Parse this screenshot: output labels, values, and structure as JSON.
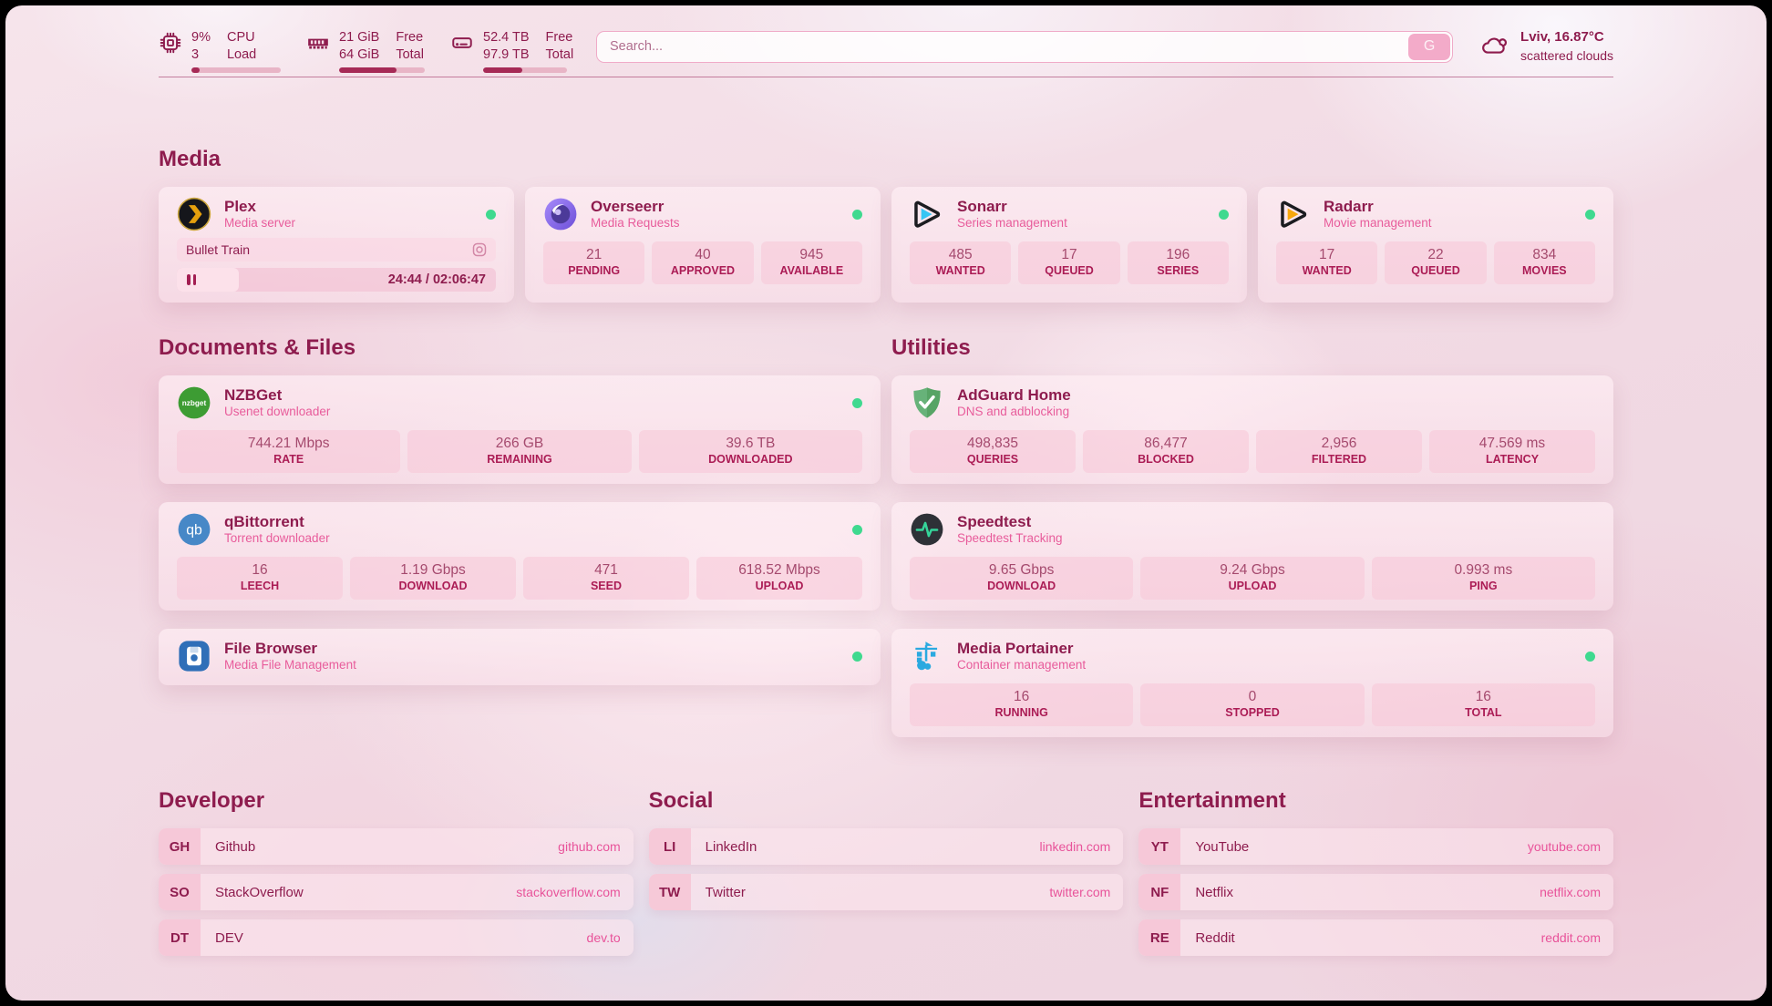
{
  "colors": {
    "accent": "#8e1c4e",
    "subtitle_pink": "#e85c9b",
    "url_pink": "#e8539a",
    "status_online": "#3fd98f",
    "bar_fill": "#a62a56"
  },
  "header": {
    "cpu": {
      "icon": "cpu-icon",
      "value": "9%",
      "sub": "3",
      "label_top": "CPU",
      "label_bottom": "Load",
      "percent": 9
    },
    "memory": {
      "icon": "memory-icon",
      "value": "21 GiB",
      "sub": "64 GiB",
      "label_top": "Free",
      "label_bottom": "Total",
      "percent": 67
    },
    "disk": {
      "icon": "disk-icon",
      "value": "52.4 TB",
      "sub": "97.9 TB",
      "label_top": "Free",
      "label_bottom": "Total",
      "percent": 47
    },
    "search": {
      "placeholder": "Search...",
      "button_label": "G"
    },
    "weather": {
      "icon": "cloud-icon",
      "location": "Lviv, 16.87°C",
      "condition": "scattered clouds"
    }
  },
  "media": {
    "title": "Media",
    "services": [
      {
        "icon": "plex-icon",
        "name": "Plex",
        "desc": "Media server",
        "online": true,
        "player": {
          "title": "Bullet Train",
          "time": "24:44 / 02:06:47",
          "progress_percent": 19.5
        }
      },
      {
        "icon": "overseerr-icon",
        "name": "Overseerr",
        "desc": "Media Requests",
        "online": true,
        "stats": [
          {
            "value": "21",
            "label": "PENDING"
          },
          {
            "value": "40",
            "label": "APPROVED"
          },
          {
            "value": "945",
            "label": "AVAILABLE"
          }
        ]
      },
      {
        "icon": "sonarr-icon",
        "name": "Sonarr",
        "desc": "Series management",
        "online": true,
        "stats": [
          {
            "value": "485",
            "label": "WANTED"
          },
          {
            "value": "17",
            "label": "QUEUED"
          },
          {
            "value": "196",
            "label": "SERIES"
          }
        ]
      },
      {
        "icon": "radarr-icon",
        "name": "Radarr",
        "desc": "Movie management",
        "online": true,
        "stats": [
          {
            "value": "17",
            "label": "WANTED"
          },
          {
            "value": "22",
            "label": "QUEUED"
          },
          {
            "value": "834",
            "label": "MOVIES"
          }
        ]
      }
    ]
  },
  "documents": {
    "title": "Documents & Files",
    "services": [
      {
        "icon": "nzbget-icon",
        "name": "NZBGet",
        "desc": "Usenet downloader",
        "online": true,
        "stats": [
          {
            "value": "744.21 Mbps",
            "label": "RATE"
          },
          {
            "value": "266 GB",
            "label": "REMAINING"
          },
          {
            "value": "39.6 TB",
            "label": "DOWNLOADED"
          }
        ]
      },
      {
        "icon": "qbittorrent-icon",
        "name": "qBittorrent",
        "desc": "Torrent downloader",
        "online": true,
        "stats": [
          {
            "value": "16",
            "label": "LEECH"
          },
          {
            "value": "1.19 Gbps",
            "label": "DOWNLOAD"
          },
          {
            "value": "471",
            "label": "SEED"
          },
          {
            "value": "618.52 Mbps",
            "label": "UPLOAD"
          }
        ]
      },
      {
        "icon": "filebrowser-icon",
        "name": "File Browser",
        "desc": "Media File Management",
        "online": true,
        "stats": []
      }
    ]
  },
  "utilities": {
    "title": "Utilities",
    "services": [
      {
        "icon": "adguard-icon",
        "name": "AdGuard Home",
        "desc": "DNS and adblocking",
        "online": false,
        "stats": [
          {
            "value": "498,835",
            "label": "QUERIES"
          },
          {
            "value": "86,477",
            "label": "BLOCKED"
          },
          {
            "value": "2,956",
            "label": "FILTERED"
          },
          {
            "value": "47.569 ms",
            "label": "LATENCY"
          }
        ]
      },
      {
        "icon": "speedtest-icon",
        "name": "Speedtest",
        "desc": "Speedtest Tracking",
        "online": false,
        "stats": [
          {
            "value": "9.65 Gbps",
            "label": "DOWNLOAD"
          },
          {
            "value": "9.24 Gbps",
            "label": "UPLOAD"
          },
          {
            "value": "0.993 ms",
            "label": "PING"
          }
        ]
      },
      {
        "icon": "portainer-icon",
        "name": "Media Portainer",
        "desc": "Container management",
        "online": true,
        "stats": [
          {
            "value": "16",
            "label": "RUNNING"
          },
          {
            "value": "0",
            "label": "STOPPED"
          },
          {
            "value": "16",
            "label": "TOTAL"
          }
        ]
      }
    ]
  },
  "bookmarks": {
    "groups": [
      {
        "title": "Developer",
        "items": [
          {
            "abbr": "GH",
            "name": "Github",
            "url": "github.com"
          },
          {
            "abbr": "SO",
            "name": "StackOverflow",
            "url": "stackoverflow.com"
          },
          {
            "abbr": "DT",
            "name": "DEV",
            "url": "dev.to"
          }
        ]
      },
      {
        "title": "Social",
        "items": [
          {
            "abbr": "LI",
            "name": "LinkedIn",
            "url": "linkedin.com"
          },
          {
            "abbr": "TW",
            "name": "Twitter",
            "url": "twitter.com"
          }
        ]
      },
      {
        "title": "Entertainment",
        "items": [
          {
            "abbr": "YT",
            "name": "YouTube",
            "url": "youtube.com"
          },
          {
            "abbr": "NF",
            "name": "Netflix",
            "url": "netflix.com"
          },
          {
            "abbr": "RE",
            "name": "Reddit",
            "url": "reddit.com"
          }
        ]
      }
    ]
  }
}
